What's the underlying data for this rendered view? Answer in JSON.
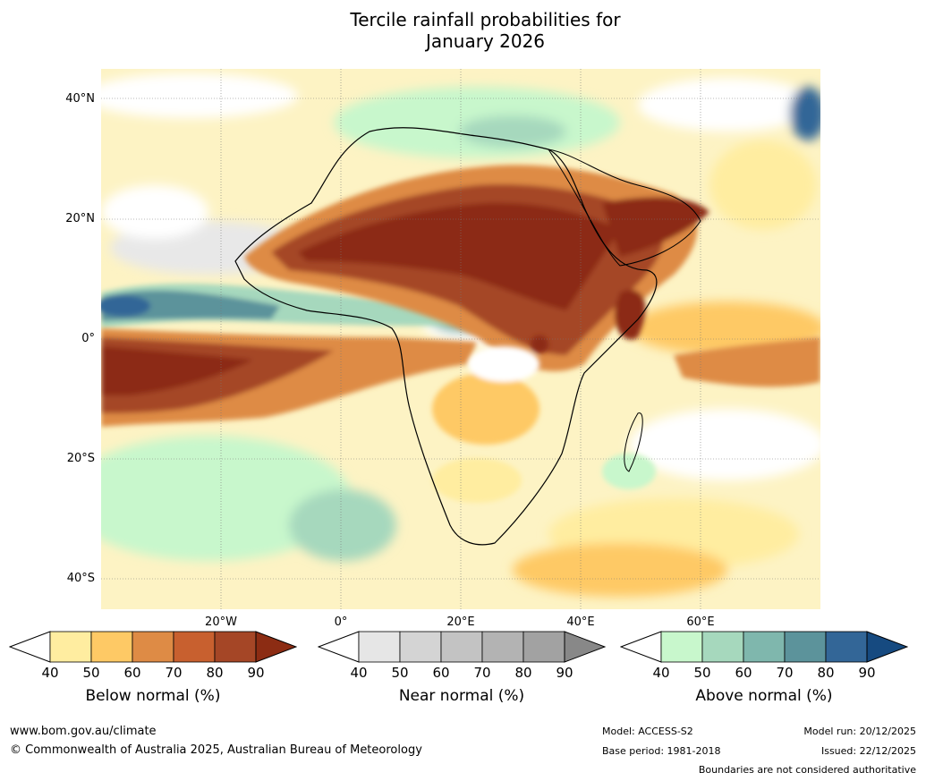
{
  "title": {
    "line1": "Tercile rainfall probabilities for",
    "line2": "January 2026"
  },
  "map": {
    "lat_labels": [
      "40°N",
      "20°N",
      "0°",
      "20°S",
      "40°S"
    ],
    "lon_labels": [
      "20°W",
      "0°",
      "20°E",
      "40°E",
      "60°E"
    ]
  },
  "legends": {
    "below": {
      "title": "Below normal (%)",
      "ticks": [
        "40",
        "50",
        "60",
        "70",
        "80",
        "90"
      ],
      "colors": [
        "#ffeda0",
        "#fec965",
        "#de8b45",
        "#c8602f",
        "#a54626",
        "#8c2c13"
      ]
    },
    "near": {
      "title": "Near normal (%)",
      "ticks": [
        "40",
        "50",
        "60",
        "70",
        "80",
        "90"
      ],
      "colors": [
        "#e6e6e6",
        "#d4d4d4",
        "#c3c3c3",
        "#b3b3b3",
        "#a2a2a2",
        "#888888"
      ]
    },
    "above": {
      "title": "Above normal (%)",
      "ticks": [
        "40",
        "50",
        "60",
        "70",
        "80",
        "90"
      ],
      "colors": [
        "#c8f7cc",
        "#a6d8bd",
        "#7fb7ad",
        "#5c939b",
        "#336697",
        "#164a80"
      ]
    }
  },
  "footer": {
    "website": "www.bom.gov.au/climate",
    "copyright": "© Commonwealth of Australia 2025, Australian Bureau of Meteorology",
    "model": "Model: ACCESS-S2",
    "base_period": "Base period: 1981-2018",
    "model_run": "Model run: 20/12/2025",
    "issued": "Issued: 22/12/2025",
    "disclaimer": "Boundaries are not considered authoritative"
  }
}
